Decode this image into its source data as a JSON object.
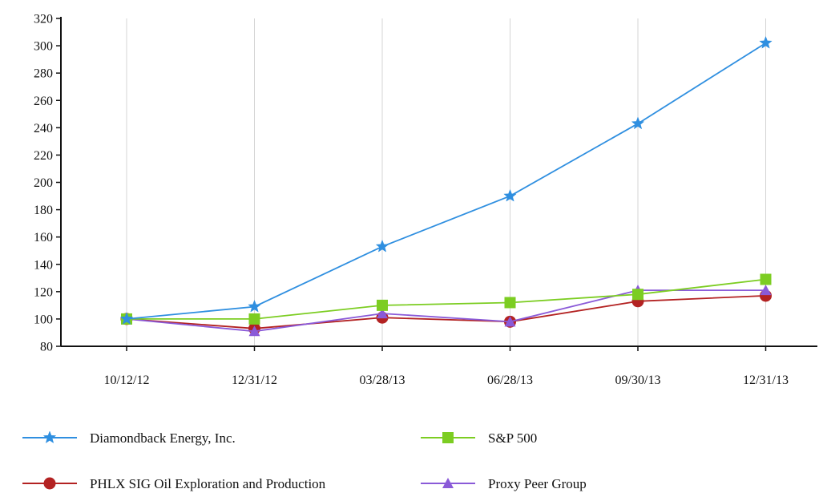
{
  "chart_data": {
    "type": "line",
    "title": "",
    "xlabel": "",
    "ylabel": "",
    "categories": [
      "10/12/12",
      "12/31/12",
      "03/28/13",
      "06/28/13",
      "09/30/13",
      "12/31/13"
    ],
    "ylim": [
      80,
      320
    ],
    "yticks": [
      80,
      100,
      120,
      140,
      160,
      180,
      200,
      220,
      240,
      260,
      280,
      300,
      320
    ],
    "grid": "vertical",
    "legend_position": "bottom",
    "series": [
      {
        "name": "Diamondback Energy, Inc.",
        "color": "#2f8fe0",
        "marker": "star",
        "values": [
          100,
          109,
          153,
          190,
          243,
          302
        ]
      },
      {
        "name": "S&P 500",
        "color": "#7ccd22",
        "marker": "square",
        "values": [
          100,
          100,
          110,
          112,
          118,
          129
        ]
      },
      {
        "name": "PHLX SIG Oil Exploration and Production",
        "color": "#b32222",
        "marker": "circle",
        "values": [
          100,
          93,
          101,
          98,
          113,
          117
        ]
      },
      {
        "name": "Proxy Peer Group",
        "color": "#8a5ad8",
        "marker": "triangle",
        "values": [
          100,
          91,
          104,
          98,
          121,
          121
        ]
      }
    ]
  }
}
